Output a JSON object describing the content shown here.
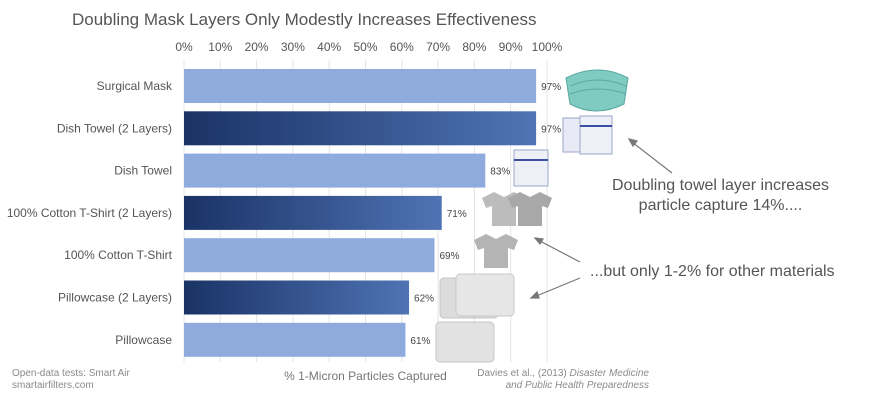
{
  "chart_data": {
    "type": "bar",
    "orientation": "horizontal",
    "title": "Doubling Mask Layers Only Modestly Increases Effectiveness",
    "xlabel": "% 1-Micron Particles Captured",
    "xlim": [
      0,
      100
    ],
    "x_ticks": [
      "0%",
      "10%",
      "20%",
      "30%",
      "40%",
      "50%",
      "60%",
      "70%",
      "80%",
      "90%",
      "100%"
    ],
    "x_axis_position": "top",
    "grid": true,
    "categories": [
      "Surgical Mask",
      "Dish Towel (2 Layers)",
      "Dish Towel",
      "100% Cotton T-Shirt (2 Layers)",
      "100% Cotton T-Shirt",
      "Pillowcase (2 Layers)",
      "Pillowcase"
    ],
    "values": [
      97,
      97,
      83,
      71,
      69,
      62,
      61
    ],
    "value_labels": [
      "97%",
      "97%",
      "83%",
      "71%",
      "69%",
      "62%",
      "61%"
    ],
    "double_layer": [
      false,
      true,
      false,
      true,
      false,
      true,
      false
    ],
    "colors": {
      "single_layer": "#8fabde",
      "double_layer_dark": "#1a3366",
      "double_layer_light": "#4f73b4",
      "grid": "#e4e4e4",
      "text": "#555555"
    }
  },
  "annotations": {
    "towel": [
      "Doubling towel layer increases",
      "particle capture 14%...."
    ],
    "others": "...but only 1-2% for other materials"
  },
  "footer": {
    "left_line1": "Open-data tests: Smart Air",
    "left_line2": "smartairfilters.com",
    "right_line1_prefix": "Davies et al., (2013) ",
    "right_line1_italic": "Disaster Medicine",
    "right_line2_italic": "and Public Health Preparedness"
  },
  "icons": [
    "surgical-mask-image",
    "dish-towel-image",
    "t-shirt-image",
    "pillowcase-image"
  ]
}
